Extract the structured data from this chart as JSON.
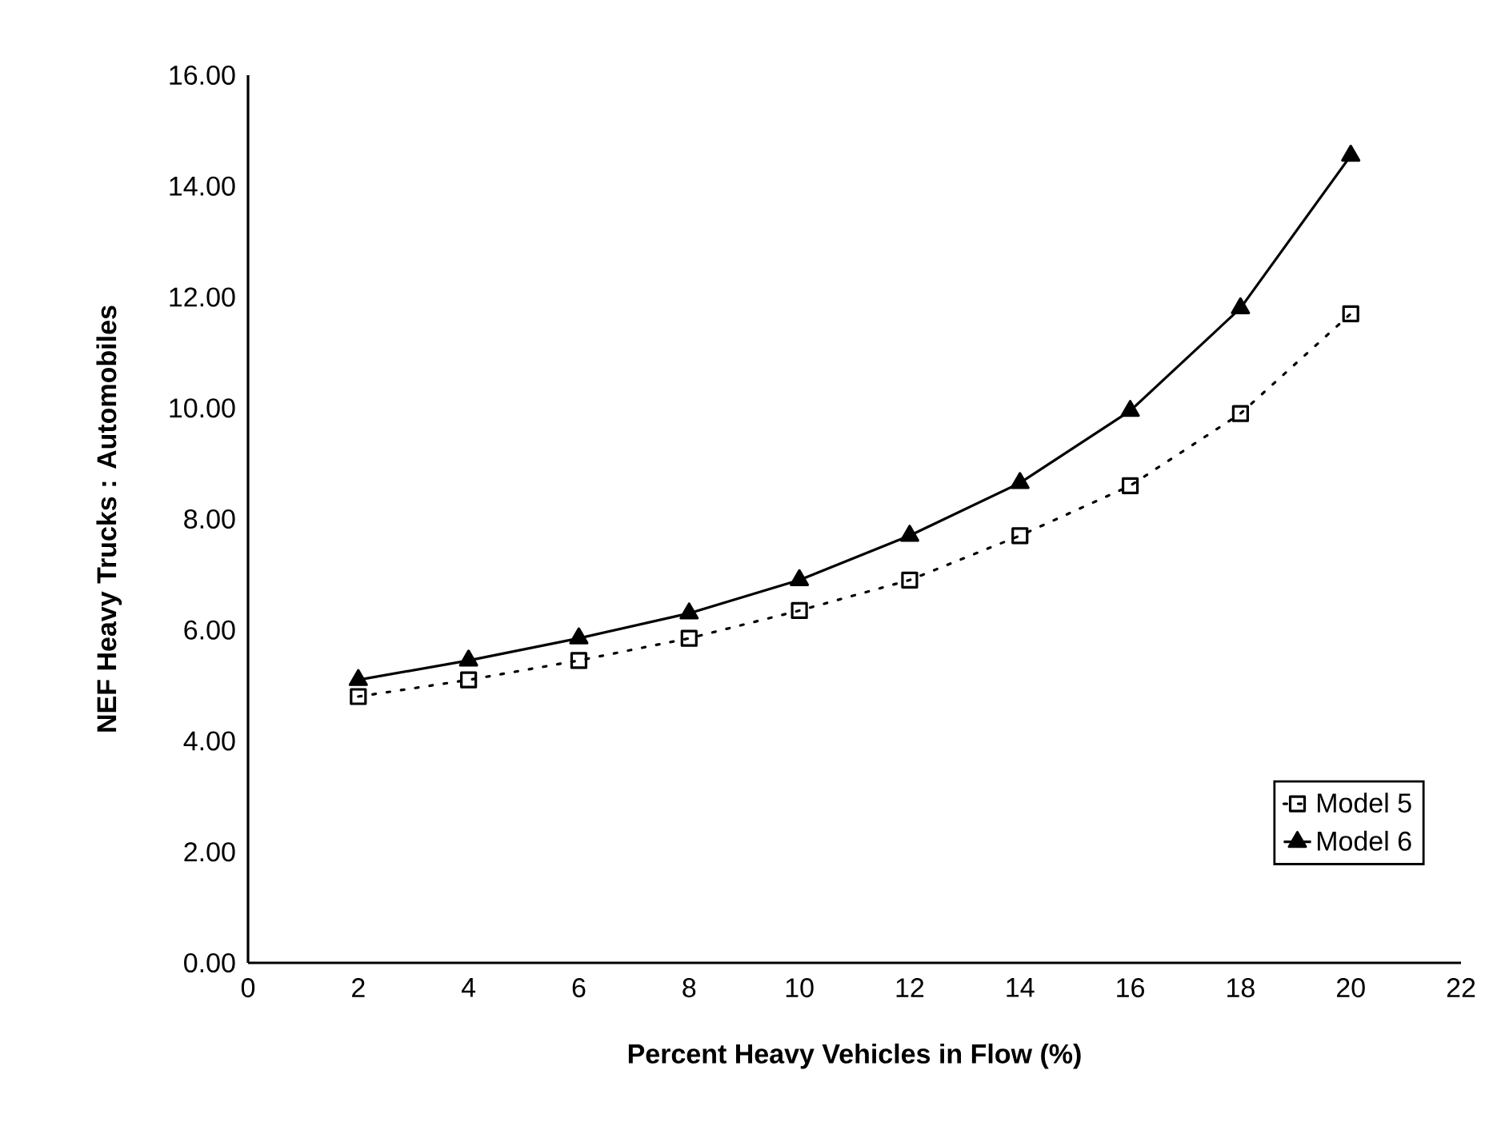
{
  "chart_data": {
    "type": "line",
    "xlabel": "Percent Heavy Vehicles in Flow (%)",
    "ylabel": "NEF    Heavy Trucks : Automobiles",
    "x": [
      2,
      4,
      6,
      8,
      10,
      12,
      14,
      16,
      18,
      20
    ],
    "series": [
      {
        "name": "Model 5",
        "color": "#000000",
        "marker": "square",
        "line_style": "dotted",
        "values": [
          4.8,
          5.1,
          5.45,
          5.85,
          6.35,
          6.9,
          7.7,
          8.6,
          9.9,
          11.7
        ]
      },
      {
        "name": "Model 6",
        "color": "#000000",
        "marker": "triangle",
        "line_style": "solid",
        "values": [
          5.1,
          5.45,
          5.85,
          6.3,
          6.9,
          7.7,
          8.65,
          9.95,
          11.8,
          14.55
        ]
      }
    ],
    "xlim": [
      0,
      22
    ],
    "xticks": [
      0,
      2,
      4,
      6,
      8,
      10,
      12,
      14,
      16,
      18,
      20,
      22
    ],
    "ylim": [
      0,
      16
    ],
    "yticks": [
      {
        "value": 0,
        "label": "0.00"
      },
      {
        "value": 2,
        "label": "2.00"
      },
      {
        "value": 4,
        "label": "4.00"
      },
      {
        "value": 6,
        "label": "6.00"
      },
      {
        "value": 8,
        "label": "8.00"
      },
      {
        "value": 10,
        "label": "10.00"
      },
      {
        "value": 12,
        "label": "12.00"
      },
      {
        "value": 14,
        "label": "14.00"
      },
      {
        "value": 16,
        "label": "16.00"
      }
    ],
    "legend": "bottom right",
    "grid": false
  }
}
